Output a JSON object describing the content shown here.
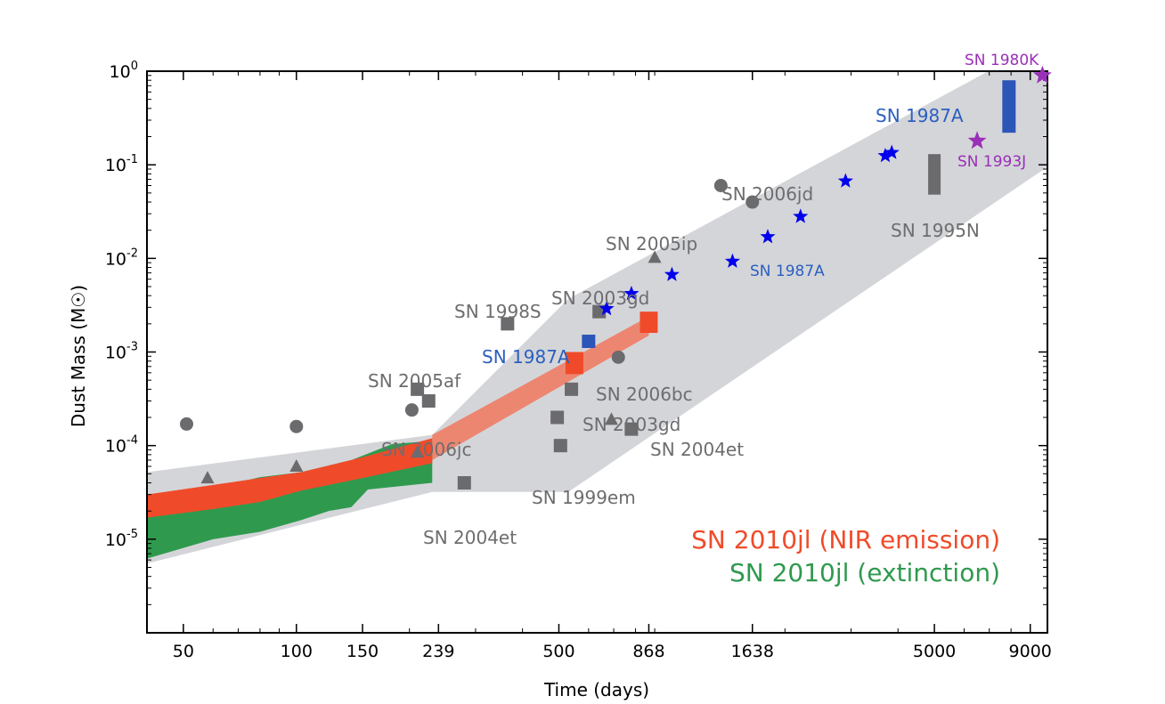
{
  "chart_data": {
    "type": "scatter",
    "title": "",
    "xlabel": "Time (days)",
    "ylabel": "Dust Mass (M☉)",
    "x_scale": "log",
    "y_scale": "log",
    "xlim": [
      40,
      10000
    ],
    "ylim": [
      1e-06,
      1
    ],
    "x_ticks": [
      50,
      100,
      150,
      239,
      500,
      868,
      1638,
      5000,
      9000
    ],
    "y_ticks": [
      {
        "value": 1e-05,
        "base": "10",
        "exp": "-5"
      },
      {
        "value": 0.0001,
        "base": "10",
        "exp": "-4"
      },
      {
        "value": 0.001,
        "base": "10",
        "exp": "-3"
      },
      {
        "value": 0.01,
        "base": "10",
        "exp": "-2"
      },
      {
        "value": 0.1,
        "base": "10",
        "exp": "-1"
      },
      {
        "value": 1,
        "base": "10",
        "exp": "0"
      }
    ],
    "band": {
      "lower": [
        [
          40,
          5.5e-06
        ],
        [
          230,
          3.2e-05
        ],
        [
          530,
          3.2e-05
        ],
        [
          10000,
          0.095
        ]
      ],
      "upper": [
        [
          40,
          5.2e-05
        ],
        [
          230,
          0.00013
        ],
        [
          530,
          0.0037
        ],
        [
          10000,
          2.2
        ]
      ]
    },
    "series": [
      {
        "name": "SN 2010jl (NIR emission)",
        "color": "#ef4b2a",
        "upper": [
          [
            40,
            3e-05
          ],
          [
            60,
            3.8e-05
          ],
          [
            80,
            4.5e-05
          ],
          [
            103,
            5.2e-05
          ],
          [
            150,
            7.5e-05
          ],
          [
            230,
            0.00012
          ]
        ],
        "lower": [
          [
            40,
            1.7e-05
          ],
          [
            60,
            2.1e-05
          ],
          [
            80,
            2.5e-05
          ],
          [
            103,
            3.3e-05
          ],
          [
            150,
            4.5e-05
          ],
          [
            230,
            6.5e-05
          ]
        ]
      },
      {
        "name": "SN 2010jl (extinction)",
        "color": "#2f9a4e",
        "upper": [
          [
            40,
            1.8e-05
          ],
          [
            60,
            3.5e-05
          ],
          [
            80,
            4.6e-05
          ],
          [
            103,
            5.2e-05
          ],
          [
            140,
            7e-05
          ],
          [
            180,
            0.000104
          ],
          [
            230,
            0.000112
          ]
        ],
        "lower": [
          [
            40,
            6.2e-06
          ],
          [
            60,
            1e-05
          ],
          [
            80,
            1.2e-05
          ],
          [
            103,
            1.6e-05
          ],
          [
            122,
            2e-05
          ],
          [
            140,
            2.2e-05
          ],
          [
            155,
            3.4e-05
          ],
          [
            230,
            4e-05
          ]
        ]
      }
    ],
    "nir_extrapolation": {
      "color": "#ef7d64",
      "upper": [
        [
          230,
          0.00013
        ],
        [
          868,
          0.0024
        ]
      ],
      "lower": [
        [
          230,
          7e-05
        ],
        [
          868,
          0.0015
        ]
      ]
    },
    "nir_points": [
      {
        "x": 550,
        "y_low": 0.00058,
        "y_high": 0.001
      },
      {
        "x": 868,
        "y_low": 0.0016,
        "y_high": 0.0027
      }
    ],
    "gray_points": [
      {
        "shape": "circle",
        "x": 51,
        "y": 0.00017
      },
      {
        "shape": "circle",
        "x": 100,
        "y": 0.00016
      },
      {
        "shape": "circle",
        "x": 203,
        "y": 0.00024
      },
      {
        "shape": "circle",
        "x": 720,
        "y": 0.00088
      },
      {
        "shape": "circle",
        "x": 1350,
        "y": 0.06
      },
      {
        "shape": "circle",
        "x": 1638,
        "y": 0.04
      },
      {
        "shape": "triangle",
        "x": 58,
        "y": 4.5e-05
      },
      {
        "shape": "triangle",
        "x": 100,
        "y": 6e-05
      },
      {
        "shape": "triangle",
        "x": 210,
        "y": 8.5e-05
      },
      {
        "shape": "triangle",
        "x": 690,
        "y": 0.00019
      },
      {
        "shape": "triangle",
        "x": 900,
        "y": 0.0102
      },
      {
        "shape": "square",
        "x": 210,
        "y": 0.0004
      },
      {
        "shape": "square",
        "x": 225,
        "y": 0.0003
      },
      {
        "shape": "square",
        "x": 280,
        "y": 4e-05
      },
      {
        "shape": "square",
        "x": 365,
        "y": 0.002
      },
      {
        "shape": "square",
        "x": 495,
        "y": 0.0002
      },
      {
        "shape": "square",
        "x": 505,
        "y": 0.0001
      },
      {
        "shape": "square",
        "x": 540,
        "y": 0.0004
      },
      {
        "shape": "square",
        "x": 640,
        "y": 0.0027
      },
      {
        "shape": "square",
        "x": 780,
        "y": 0.00015
      }
    ],
    "sn1995n_bar": {
      "x": 5000,
      "y_low": 0.048,
      "y_high": 0.13,
      "color": "#6b6b6e"
    },
    "sn1987a_bar": {
      "x": 7900,
      "y_low": 0.22,
      "y_high": 0.8,
      "color": "#2c55b8"
    },
    "sn1987a_square": {
      "x": 600,
      "y": 0.0013,
      "color": "#2c55b8"
    },
    "sn1987a_stars": {
      "color": "#0000ee",
      "points": [
        [
          670,
          0.0029
        ],
        [
          780,
          0.0042
        ],
        [
          1000,
          0.0067
        ],
        [
          1450,
          0.0093
        ],
        [
          1800,
          0.017
        ],
        [
          2200,
          0.028
        ],
        [
          2900,
          0.067
        ],
        [
          3700,
          0.125
        ],
        [
          3850,
          0.135
        ]
      ]
    },
    "purple_stars": {
      "color": "#9a2fb8",
      "points": [
        [
          6500,
          0.18
        ],
        [
          9700,
          0.9
        ]
      ]
    },
    "annotations": [
      {
        "id": "sn1998s",
        "text": "SN 1998S",
        "style": "gray"
      },
      {
        "id": "sn2003gd-top",
        "text": "SN 2003gd",
        "style": "gray"
      },
      {
        "id": "sn2005ip",
        "text": "SN 2005ip",
        "style": "gray"
      },
      {
        "id": "sn2006jd",
        "text": "SN 2006jd",
        "style": "gray"
      },
      {
        "id": "sn1995n",
        "text": "SN 1995N",
        "style": "gray"
      },
      {
        "id": "sn2005af",
        "text": "SN 2005af",
        "style": "gray"
      },
      {
        "id": "sn2006jc",
        "text": "SN 2006jc",
        "style": "gray"
      },
      {
        "id": "sn2006bc",
        "text": "SN 2006bc",
        "style": "gray"
      },
      {
        "id": "sn2003gd-bottom",
        "text": "SN 2003gd",
        "style": "gray"
      },
      {
        "id": "sn2004et-right",
        "text": "SN 2004et",
        "style": "gray"
      },
      {
        "id": "sn1999em",
        "text": "SN 1999em",
        "style": "gray"
      },
      {
        "id": "sn2004et-bottom",
        "text": "SN 2004et",
        "style": "gray"
      },
      {
        "id": "sn1987a-left",
        "text": "SN 1987A",
        "style": "blue"
      },
      {
        "id": "sn1987a-mid",
        "text": "SN 1987A",
        "style": "blue"
      },
      {
        "id": "sn1987a-top",
        "text": "SN 1987A",
        "style": "blue"
      },
      {
        "id": "sn1980k",
        "text": "SN 1980K",
        "style": "purple"
      },
      {
        "id": "sn1993j",
        "text": "SN 1993J",
        "style": "purple"
      }
    ],
    "legend": {
      "placement": "bottom-right",
      "entries": [
        {
          "text": "SN 2010jl (NIR emission)",
          "color": "#ef4b2a"
        },
        {
          "text": "SN 2010jl (extinction)",
          "color": "#2f9a4e"
        }
      ]
    },
    "grid": false,
    "colors": {
      "band": "#d4d5d9",
      "gray_marker": "#6b6b6e"
    }
  }
}
